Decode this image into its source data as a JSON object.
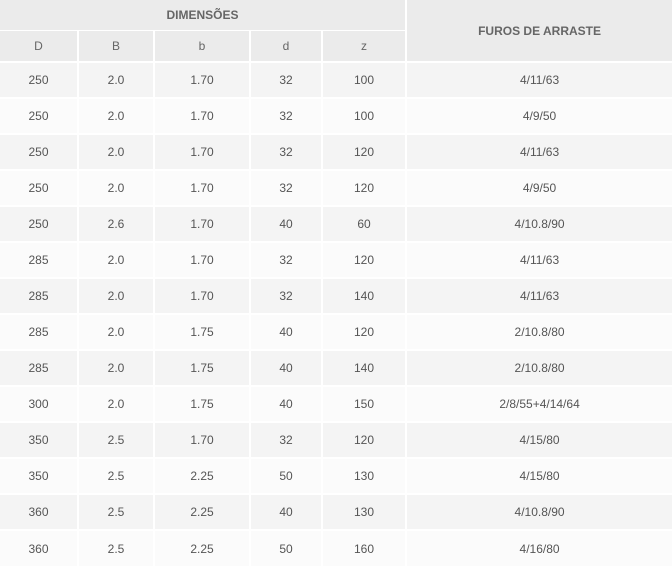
{
  "table": {
    "group_header": "DIMENSÕES",
    "furos_header": "FUROS DE ARRASTE",
    "columns": [
      "D",
      "B",
      "b",
      "d",
      "z"
    ],
    "rows": [
      [
        "250",
        "2.0",
        "1.70",
        "32",
        "100",
        "4/11/63"
      ],
      [
        "250",
        "2.0",
        "1.70",
        "32",
        "100",
        "4/9/50"
      ],
      [
        "250",
        "2.0",
        "1.70",
        "32",
        "120",
        "4/11/63"
      ],
      [
        "250",
        "2.0",
        "1.70",
        "32",
        "120",
        "4/9/50"
      ],
      [
        "250",
        "2.6",
        "1.70",
        "40",
        "60",
        "4/10.8/90"
      ],
      [
        "285",
        "2.0",
        "1.70",
        "32",
        "120",
        "4/11/63"
      ],
      [
        "285",
        "2.0",
        "1.70",
        "32",
        "140",
        "4/11/63"
      ],
      [
        "285",
        "2.0",
        "1.75",
        "40",
        "120",
        "2/10.8/80"
      ],
      [
        "285",
        "2.0",
        "1.75",
        "40",
        "140",
        "2/10.8/80"
      ],
      [
        "300",
        "2.0",
        "1.75",
        "40",
        "150",
        "2/8/55+4/14/64"
      ],
      [
        "350",
        "2.5",
        "1.70",
        "32",
        "120",
        "4/15/80"
      ],
      [
        "350",
        "2.5",
        "2.25",
        "50",
        "130",
        "4/15/80"
      ],
      [
        "360",
        "2.5",
        "2.25",
        "40",
        "130",
        "4/10.8/90"
      ],
      [
        "360",
        "2.5",
        "2.25",
        "50",
        "160",
        "4/16/80"
      ]
    ]
  }
}
